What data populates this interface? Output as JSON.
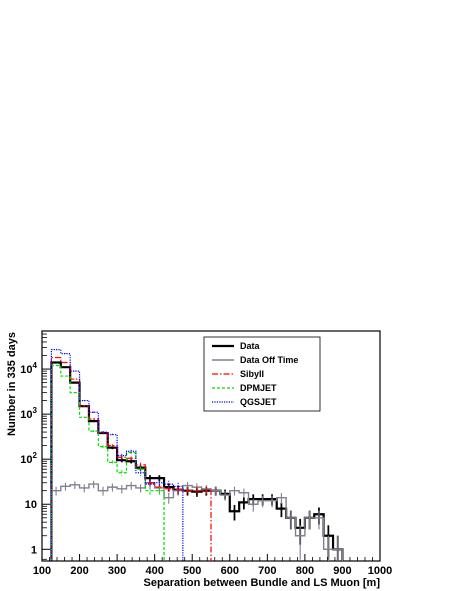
{
  "chart_data": {
    "type": "histogram",
    "xlabel": "Separation between Bundle and LS Muon [m]",
    "ylabel": "Number in 335 days",
    "xlim": [
      100,
      1000
    ],
    "ylim": [
      0.55,
      70000
    ],
    "y_scale": "log",
    "x_ticks": [
      "100",
      "200",
      "300",
      "400",
      "500",
      "600",
      "700",
      "800",
      "900",
      "1000"
    ],
    "y_ticks": [
      {
        "value": 1,
        "mantissa": "1",
        "exp": ""
      },
      {
        "value": 10,
        "mantissa": "10",
        "exp": ""
      },
      {
        "value": 100,
        "mantissa": "10",
        "exp": "2"
      },
      {
        "value": 1000,
        "mantissa": "10",
        "exp": "3"
      },
      {
        "value": 10000,
        "mantissa": "10",
        "exp": "4"
      }
    ],
    "legend_position": "top-right",
    "bin_edges": [
      125,
      150,
      175,
      200,
      225,
      250,
      275,
      300,
      325,
      350,
      375,
      400,
      425,
      450,
      475,
      500,
      525,
      550,
      575,
      600,
      625,
      650,
      675,
      700,
      725,
      750,
      775,
      800,
      825,
      850,
      875,
      900,
      925,
      950,
      975,
      1000
    ],
    "series": [
      {
        "name": "Data",
        "color": "#000000",
        "dash": "",
        "width": 2.2,
        "values": [
          14000,
          11000,
          5000,
          1500,
          700,
          380,
          180,
          95,
          90,
          65,
          38,
          38,
          24,
          21,
          20,
          19,
          20,
          20,
          17,
          7,
          11,
          13,
          13,
          13,
          8,
          5,
          3,
          5,
          6,
          2,
          1
        ]
      },
      {
        "name": "Data Off Time",
        "color": "#808090",
        "dash": "",
        "width": 1.4,
        "values": [
          20,
          25,
          27,
          23,
          28,
          20,
          24,
          22,
          26,
          23,
          30,
          23,
          14,
          20,
          26,
          24,
          22,
          20,
          16,
          20,
          18,
          10,
          12,
          12,
          14,
          5,
          2,
          5,
          5,
          1,
          1
        ]
      },
      {
        "name": "SibyII",
        "color": "#ff0000",
        "dash": "6,2,1.5,2",
        "width": 1.2,
        "values": [
          18000,
          14000,
          6000,
          1500,
          780,
          390,
          200,
          110,
          105,
          75,
          30,
          24,
          22,
          21,
          20,
          20,
          20
        ]
      },
      {
        "name": "DPMJET",
        "color": "#00dd00",
        "dash": "3,2",
        "width": 1.2,
        "values": [
          12000,
          7000,
          3000,
          850,
          420,
          190,
          85,
          50,
          140,
          60,
          20,
          20
        ]
      },
      {
        "name": "QGSJET",
        "color": "#0000ee",
        "dash": "1.2,1.2",
        "width": 1.2,
        "values": [
          27000,
          22000,
          9000,
          2000,
          1100,
          400,
          350,
          120,
          150,
          50,
          28,
          30,
          28,
          25
        ]
      }
    ]
  }
}
